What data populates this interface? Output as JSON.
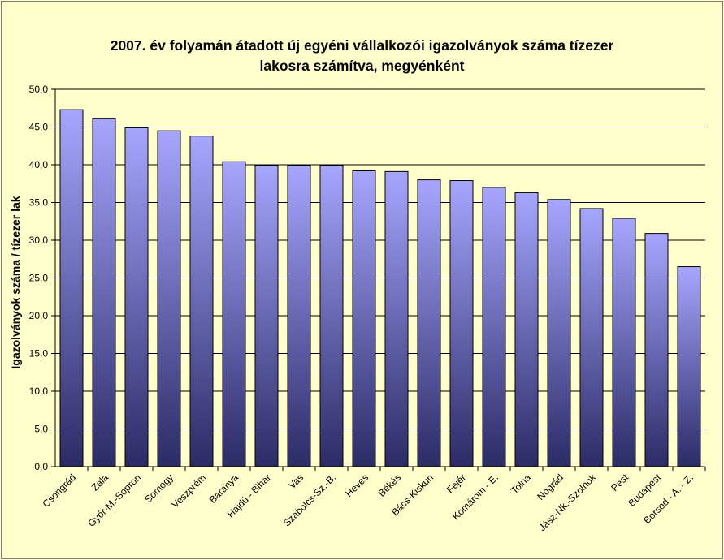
{
  "chart_data": {
    "type": "bar",
    "title_lines": [
      "2007. év folyamán átadott új egyéni vállalkozói  igazolványok száma tízezer",
      "lakosra számítva, megyénként"
    ],
    "xlabel": "",
    "ylabel": "Igazolványok száma / tízezer lak",
    "ylim": [
      0,
      50
    ],
    "ytick_step": 5,
    "ytick_labels": [
      "0,0",
      "5,0",
      "10,0",
      "15,0",
      "20,0",
      "25,0",
      "30,0",
      "35,0",
      "40,0",
      "45,0",
      "50,0"
    ],
    "grid": true,
    "categories": [
      "Csongrád",
      "Zala",
      "Győr-M.-Sopron",
      "Somogy",
      "Veszprém",
      "Baranya",
      "Hajdú - Bihar",
      "Vas",
      "Szabolcs-Sz.-B.",
      "Heves",
      "Békés",
      "Bács-Kiskun",
      "Fejér",
      "Komárom - E.",
      "Tolna",
      "Nógrád",
      "Jász-Nk.-Szolnok",
      "Pest",
      "Budapest",
      "Borsod - A. - Z."
    ],
    "values": [
      47.3,
      46.1,
      44.9,
      44.5,
      43.8,
      40.4,
      39.9,
      39.9,
      39.9,
      39.2,
      39.1,
      38.0,
      37.9,
      37.0,
      36.3,
      35.4,
      34.2,
      32.9,
      30.9,
      26.5
    ],
    "colors": {
      "bar_top": "#A6A6FF",
      "bar_bottom": "#2B2B66",
      "grid": "#000000",
      "background": "#FFFFCC"
    }
  }
}
